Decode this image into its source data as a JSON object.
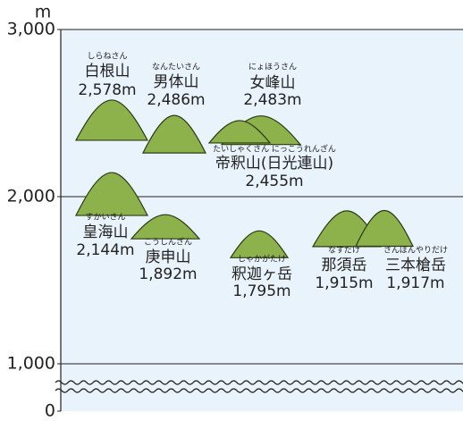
{
  "chart_data": {
    "type": "mountain",
    "ylabel": "m",
    "ylim": [
      0,
      3000
    ],
    "yticks": [
      {
        "value": 0,
        "label": "0"
      },
      {
        "value": 1000,
        "label": "1,000"
      },
      {
        "value": 2000,
        "label": "2,000"
      },
      {
        "value": 3000,
        "label": "3,000"
      }
    ],
    "axis_break": true,
    "color": "#8db14b",
    "categories": [
      "白根山",
      "男体山",
      "女峰山",
      "帝釈山(日光連山)",
      "皇海山",
      "庚申山",
      "釈迦ヶ岳",
      "那須岳",
      "三本槍岳"
    ],
    "readings": [
      "しらねさん",
      "なんたいさん",
      "にょほうさん",
      "たいしゃくさん にっこうれんざん",
      "すかいさん",
      "こうしんざん",
      "しゃかがたけ",
      "なすだけ",
      "さんぼんやりだけ"
    ],
    "values": [
      2578,
      2486,
      2483,
      2455,
      2144,
      1892,
      1795,
      1915,
      1917
    ],
    "value_labels": [
      "2,578m",
      "2,486m",
      "2,483m",
      "2,455m",
      "2,144m",
      "1,892m",
      "1,795m",
      "1,915m",
      "1,917m"
    ]
  }
}
